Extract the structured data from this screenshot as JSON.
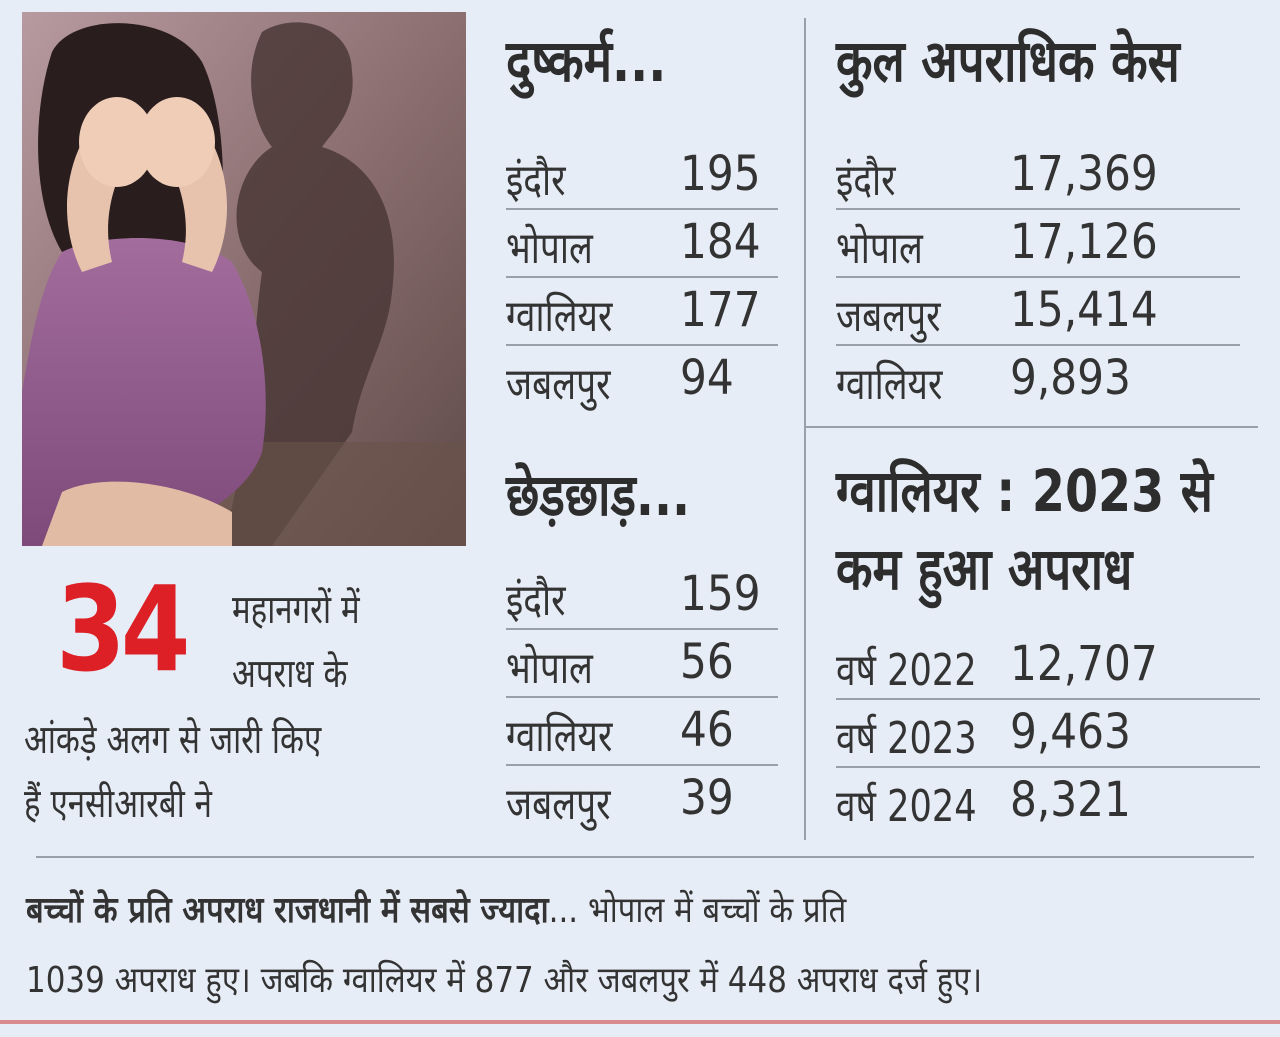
{
  "rape": {
    "title": "दुष्कर्म...",
    "rows": [
      {
        "city": "इंदौर",
        "value": "195"
      },
      {
        "city": "भोपाल",
        "value": "184"
      },
      {
        "city": "ग्वालियर",
        "value": "177"
      },
      {
        "city": "जबलपुर",
        "value": "94"
      }
    ]
  },
  "total_cases": {
    "title": "कुल अपराधिक केस",
    "rows": [
      {
        "city": "इंदौर",
        "value": "17,369"
      },
      {
        "city": "भोपाल",
        "value": "17,126"
      },
      {
        "city": "जबलपुर",
        "value": "15,414"
      },
      {
        "city": "ग्वालियर",
        "value": "9,893"
      }
    ]
  },
  "molestation": {
    "title": "छेड़छाड़...",
    "rows": [
      {
        "city": "इंदौर",
        "value": "159"
      },
      {
        "city": "भोपाल",
        "value": "56"
      },
      {
        "city": "ग्वालियर",
        "value": "46"
      },
      {
        "city": "जबलपुर",
        "value": "39"
      }
    ]
  },
  "gwalior_trend": {
    "title_line1": "ग्वालियर : 2023 से",
    "title_line2": "कम हुआ अपराध",
    "rows": [
      {
        "year": "वर्ष 2022",
        "value": "12,707"
      },
      {
        "year": "वर्ष 2023",
        "value": "9,463"
      },
      {
        "year": "वर्ष 2024",
        "value": "8,321"
      }
    ]
  },
  "stat": {
    "number": "34",
    "line1": "महानगरों में",
    "line2": "अपराध के",
    "line3": "आंकड़े अलग से जारी किए",
    "line4": "हैं एनसीआरबी ने"
  },
  "footer": {
    "bold": "बच्चों के प्रति अपराध राजधानी में सबसे ज्यादा",
    "rest1": "... भोपाल में बच्चों के प्रति",
    "line2": "1039 अपराध हुए। जबकि ग्वालियर में 877 और जबलपुर में 448 अपराध दर्ज हुए।"
  },
  "colors": {
    "accent_red": "#dd1f26",
    "background": "#e7edf6"
  }
}
